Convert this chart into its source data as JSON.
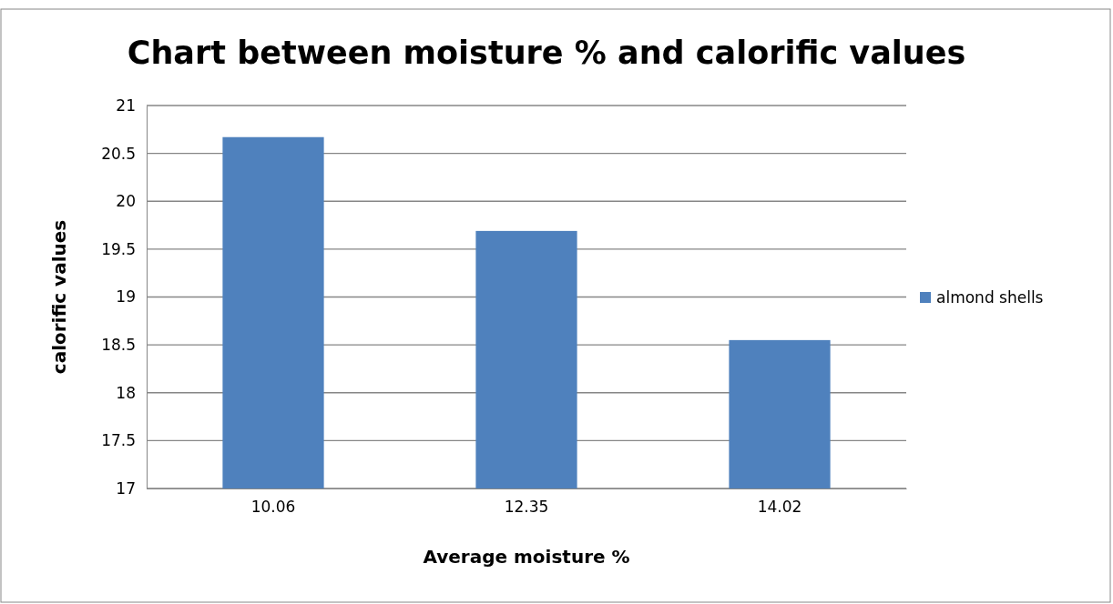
{
  "chart_data": {
    "type": "bar",
    "title": "Chart between  moisture % and calorific values",
    "xlabel": "Average moisture %",
    "ylabel": "calorific values",
    "categories": [
      "10.06",
      "12.35",
      "14.02"
    ],
    "series": [
      {
        "name": "almond shells",
        "color": "#4f81bd",
        "values": [
          20.67,
          19.69,
          18.55
        ]
      }
    ],
    "ylim": [
      17,
      21
    ],
    "yticks": [
      17,
      17.5,
      18,
      18.5,
      19,
      19.5,
      20,
      20.5,
      21
    ],
    "grid": "y",
    "legend": "right"
  }
}
